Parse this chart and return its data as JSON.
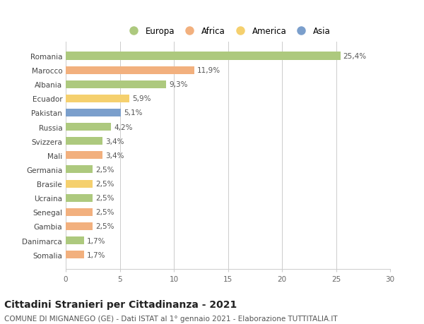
{
  "categories": [
    "Romania",
    "Marocco",
    "Albania",
    "Ecuador",
    "Pakistan",
    "Russia",
    "Svizzera",
    "Mali",
    "Germania",
    "Brasile",
    "Ucraina",
    "Senegal",
    "Gambia",
    "Danimarca",
    "Somalia"
  ],
  "values": [
    25.4,
    11.9,
    9.3,
    5.9,
    5.1,
    4.2,
    3.4,
    3.4,
    2.5,
    2.5,
    2.5,
    2.5,
    2.5,
    1.7,
    1.7
  ],
  "labels": [
    "25,4%",
    "11,9%",
    "9,3%",
    "5,9%",
    "5,1%",
    "4,2%",
    "3,4%",
    "3,4%",
    "2,5%",
    "2,5%",
    "2,5%",
    "2,5%",
    "2,5%",
    "1,7%",
    "1,7%"
  ],
  "bar_colors": [
    "#adc97e",
    "#f2b07e",
    "#adc97e",
    "#f5d06e",
    "#7b9fcc",
    "#adc97e",
    "#adc97e",
    "#f2b07e",
    "#adc97e",
    "#f5d06e",
    "#adc97e",
    "#f2b07e",
    "#f2b07e",
    "#adc97e",
    "#f2b07e"
  ],
  "legend_labels": [
    "Europa",
    "Africa",
    "America",
    "Asia"
  ],
  "legend_colors": [
    "#adc97e",
    "#f2b07e",
    "#f5d06e",
    "#7b9fcc"
  ],
  "xlim": [
    0,
    30
  ],
  "xticks": [
    0,
    5,
    10,
    15,
    20,
    25,
    30
  ],
  "title": "Cittadini Stranieri per Cittadinanza - 2021",
  "subtitle": "COMUNE DI MIGNANEGO (GE) - Dati ISTAT al 1° gennaio 2021 - Elaborazione TUTTITALIA.IT",
  "background_color": "#ffffff",
  "grid_color": "#cccccc",
  "bar_height": 0.55,
  "title_fontsize": 10,
  "subtitle_fontsize": 7.5,
  "label_fontsize": 7.5,
  "tick_fontsize": 7.5,
  "legend_fontsize": 8.5
}
